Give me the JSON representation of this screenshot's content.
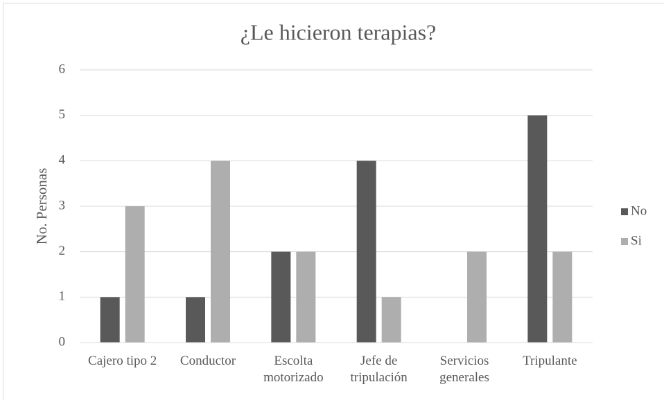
{
  "chart_data": {
    "type": "bar",
    "title": "¿Le hicieron terapias?",
    "y_label": "No. Personas",
    "categories": [
      "Cajero tipo 2",
      "Conductor",
      "Escolta motorizado",
      "Jefe de tripulación",
      "Servicios generales",
      "Tripulante"
    ],
    "series": [
      {
        "name": "No",
        "color": "#595959",
        "values": [
          1,
          1,
          2,
          4,
          0,
          5
        ]
      },
      {
        "name": "Si",
        "color": "#aeaeae",
        "values": [
          3,
          4,
          2,
          1,
          2,
          2
        ]
      }
    ],
    "ylim": [
      0,
      6
    ],
    "yticks": [
      0,
      1,
      2,
      3,
      4,
      5,
      6
    ],
    "grid": true,
    "legend": "right"
  }
}
